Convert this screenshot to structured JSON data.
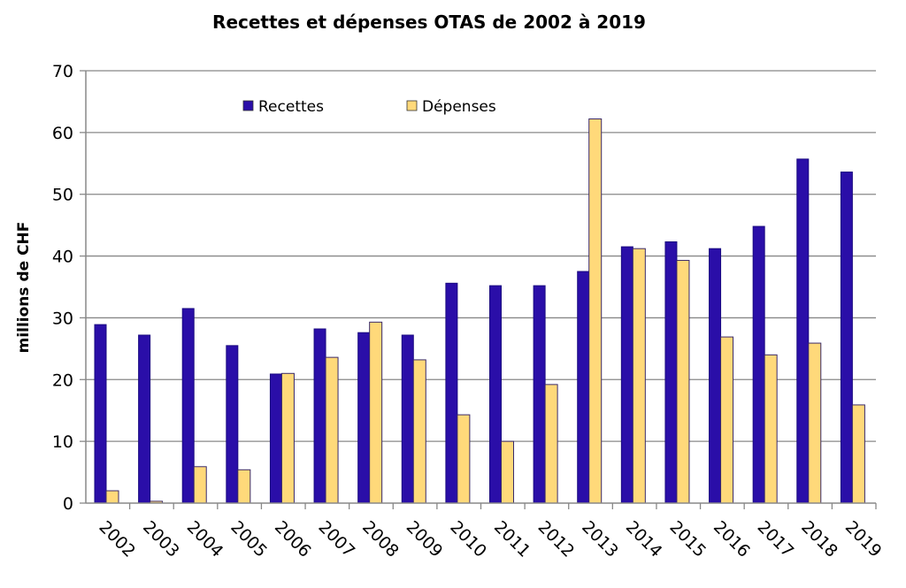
{
  "chart_data": {
    "type": "bar",
    "title": "Recettes et dépenses OTAS de 2002 à 2019",
    "xlabel": "",
    "ylabel": "millions de CHF",
    "ylim": [
      0,
      70
    ],
    "yticks": [
      0,
      10,
      20,
      30,
      40,
      50,
      60,
      70
    ],
    "grid": true,
    "legend": "top-left inside",
    "categories": [
      "2002",
      "2003",
      "2004",
      "2005",
      "2006",
      "2007",
      "2008",
      "2009",
      "2010",
      "2011",
      "2012",
      "2013",
      "2014",
      "2015",
      "2016",
      "2017",
      "2018",
      "2019"
    ],
    "series": [
      {
        "name": "Recettes",
        "color": "#2a0ea8",
        "values": [
          28.9,
          27.2,
          31.5,
          25.5,
          20.9,
          28.2,
          27.6,
          27.2,
          35.6,
          35.2,
          35.2,
          37.5,
          41.5,
          42.3,
          41.2,
          44.8,
          55.7,
          53.6
        ]
      },
      {
        "name": "Dépenses",
        "color": "#ffd97a",
        "values": [
          2.0,
          0.3,
          5.9,
          5.4,
          21.0,
          23.6,
          29.3,
          23.2,
          14.3,
          10.0,
          19.2,
          62.2,
          41.2,
          39.3,
          26.9,
          24.0,
          25.9,
          15.9
        ]
      }
    ]
  }
}
